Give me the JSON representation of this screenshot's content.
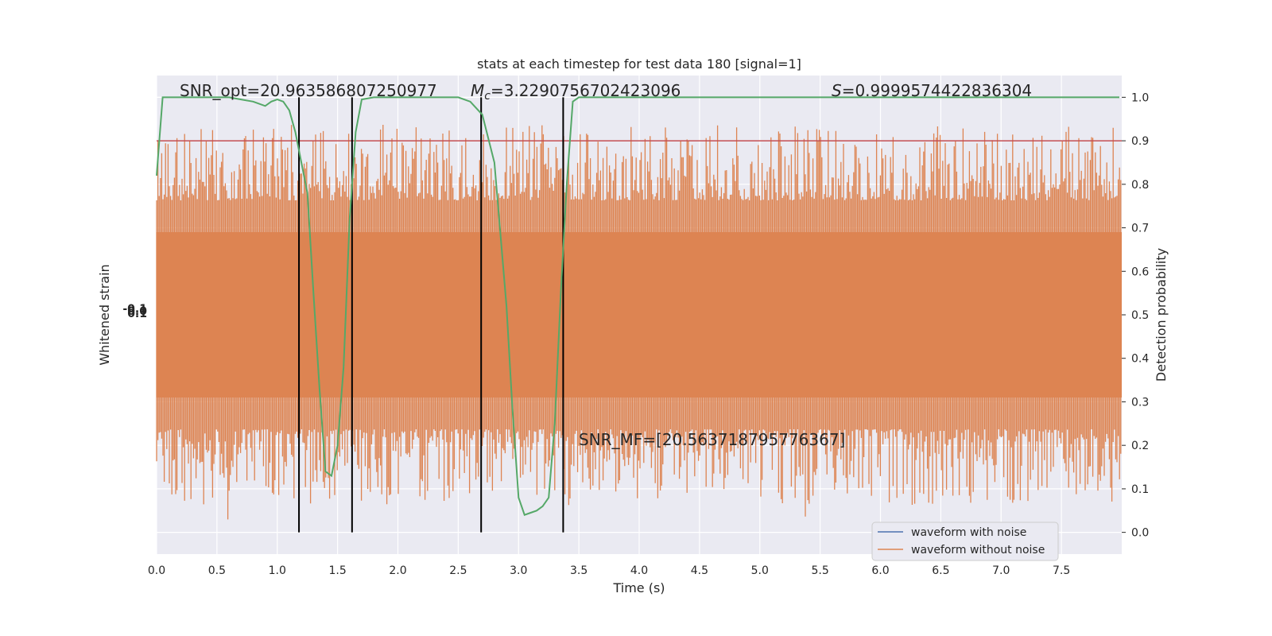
{
  "chart_data": {
    "type": "line",
    "title": "stats at each timestep for test data 180 [signal=1]",
    "xlabel": "Time (s)",
    "ylabel_left": "Whitened strain",
    "ylabel_right": "Detection probability",
    "xlim": [
      0,
      8.0
    ],
    "ylim_right": [
      -0.05,
      1.05
    ],
    "x_ticks": [
      "0.0",
      "0.5",
      "1.0",
      "1.5",
      "2.0",
      "2.5",
      "3.0",
      "3.5",
      "4.0",
      "4.5",
      "5.0",
      "5.5",
      "6.0",
      "6.5",
      "7.0",
      "7.5"
    ],
    "y_ticks_right": [
      "0.0",
      "0.1",
      "0.2",
      "0.3",
      "0.4",
      "0.5",
      "0.6",
      "0.7",
      "0.8",
      "0.9",
      "1.0"
    ],
    "left_tick_labels": [
      "-0.1",
      "0.0",
      "0.1"
    ],
    "grid": true,
    "threshold": {
      "value": 0.9,
      "color": "#c44e52"
    },
    "vertical_lines": [
      1.18,
      1.62,
      2.69,
      3.37
    ],
    "annotations": {
      "snr_opt": "SNR_opt=20.963586807250977",
      "mc_prefix": "M",
      "mc_sub": "c",
      "mc_value": "=3.2290756702423096",
      "s_prefix": "S",
      "s_value": "=0.9999574422836304",
      "snr_mf": "SNR_MF=[20.563718795776367]"
    },
    "series": [
      {
        "name": "waveform with noise",
        "color": "#4c72b0"
      },
      {
        "name": "waveform without noise",
        "color": "#dd8452"
      },
      {
        "name": "",
        "color": "#55a868",
        "x": [
          0.0,
          0.05,
          0.1,
          0.2,
          0.3,
          0.4,
          0.5,
          0.6,
          0.7,
          0.8,
          0.9,
          0.95,
          1.0,
          1.05,
          1.1,
          1.15,
          1.2,
          1.25,
          1.3,
          1.35,
          1.4,
          1.45,
          1.5,
          1.55,
          1.6,
          1.65,
          1.7,
          1.8,
          2.0,
          2.2,
          2.4,
          2.5,
          2.6,
          2.7,
          2.8,
          2.9,
          2.95,
          3.0,
          3.05,
          3.1,
          3.15,
          3.2,
          3.25,
          3.3,
          3.35,
          3.4,
          3.45,
          3.5,
          3.6,
          3.8,
          4.0,
          4.5,
          5.0,
          5.5,
          6.0,
          6.5,
          7.0,
          7.5,
          7.98
        ],
        "y": [
          0.82,
          1.0,
          1.0,
          1.0,
          1.0,
          1.0,
          1.0,
          1.0,
          0.995,
          0.99,
          0.98,
          0.99,
          0.995,
          0.99,
          0.97,
          0.92,
          0.85,
          0.78,
          0.55,
          0.33,
          0.14,
          0.13,
          0.2,
          0.38,
          0.72,
          0.92,
          0.995,
          1.0,
          1.0,
          1.0,
          1.0,
          1.0,
          0.99,
          0.96,
          0.85,
          0.52,
          0.28,
          0.08,
          0.04,
          0.045,
          0.05,
          0.06,
          0.08,
          0.25,
          0.55,
          0.8,
          0.99,
          1.0,
          1.0,
          1.0,
          1.0,
          1.0,
          1.0,
          1.0,
          1.0,
          1.0,
          1.0,
          1.0,
          1.0
        ]
      }
    ]
  }
}
